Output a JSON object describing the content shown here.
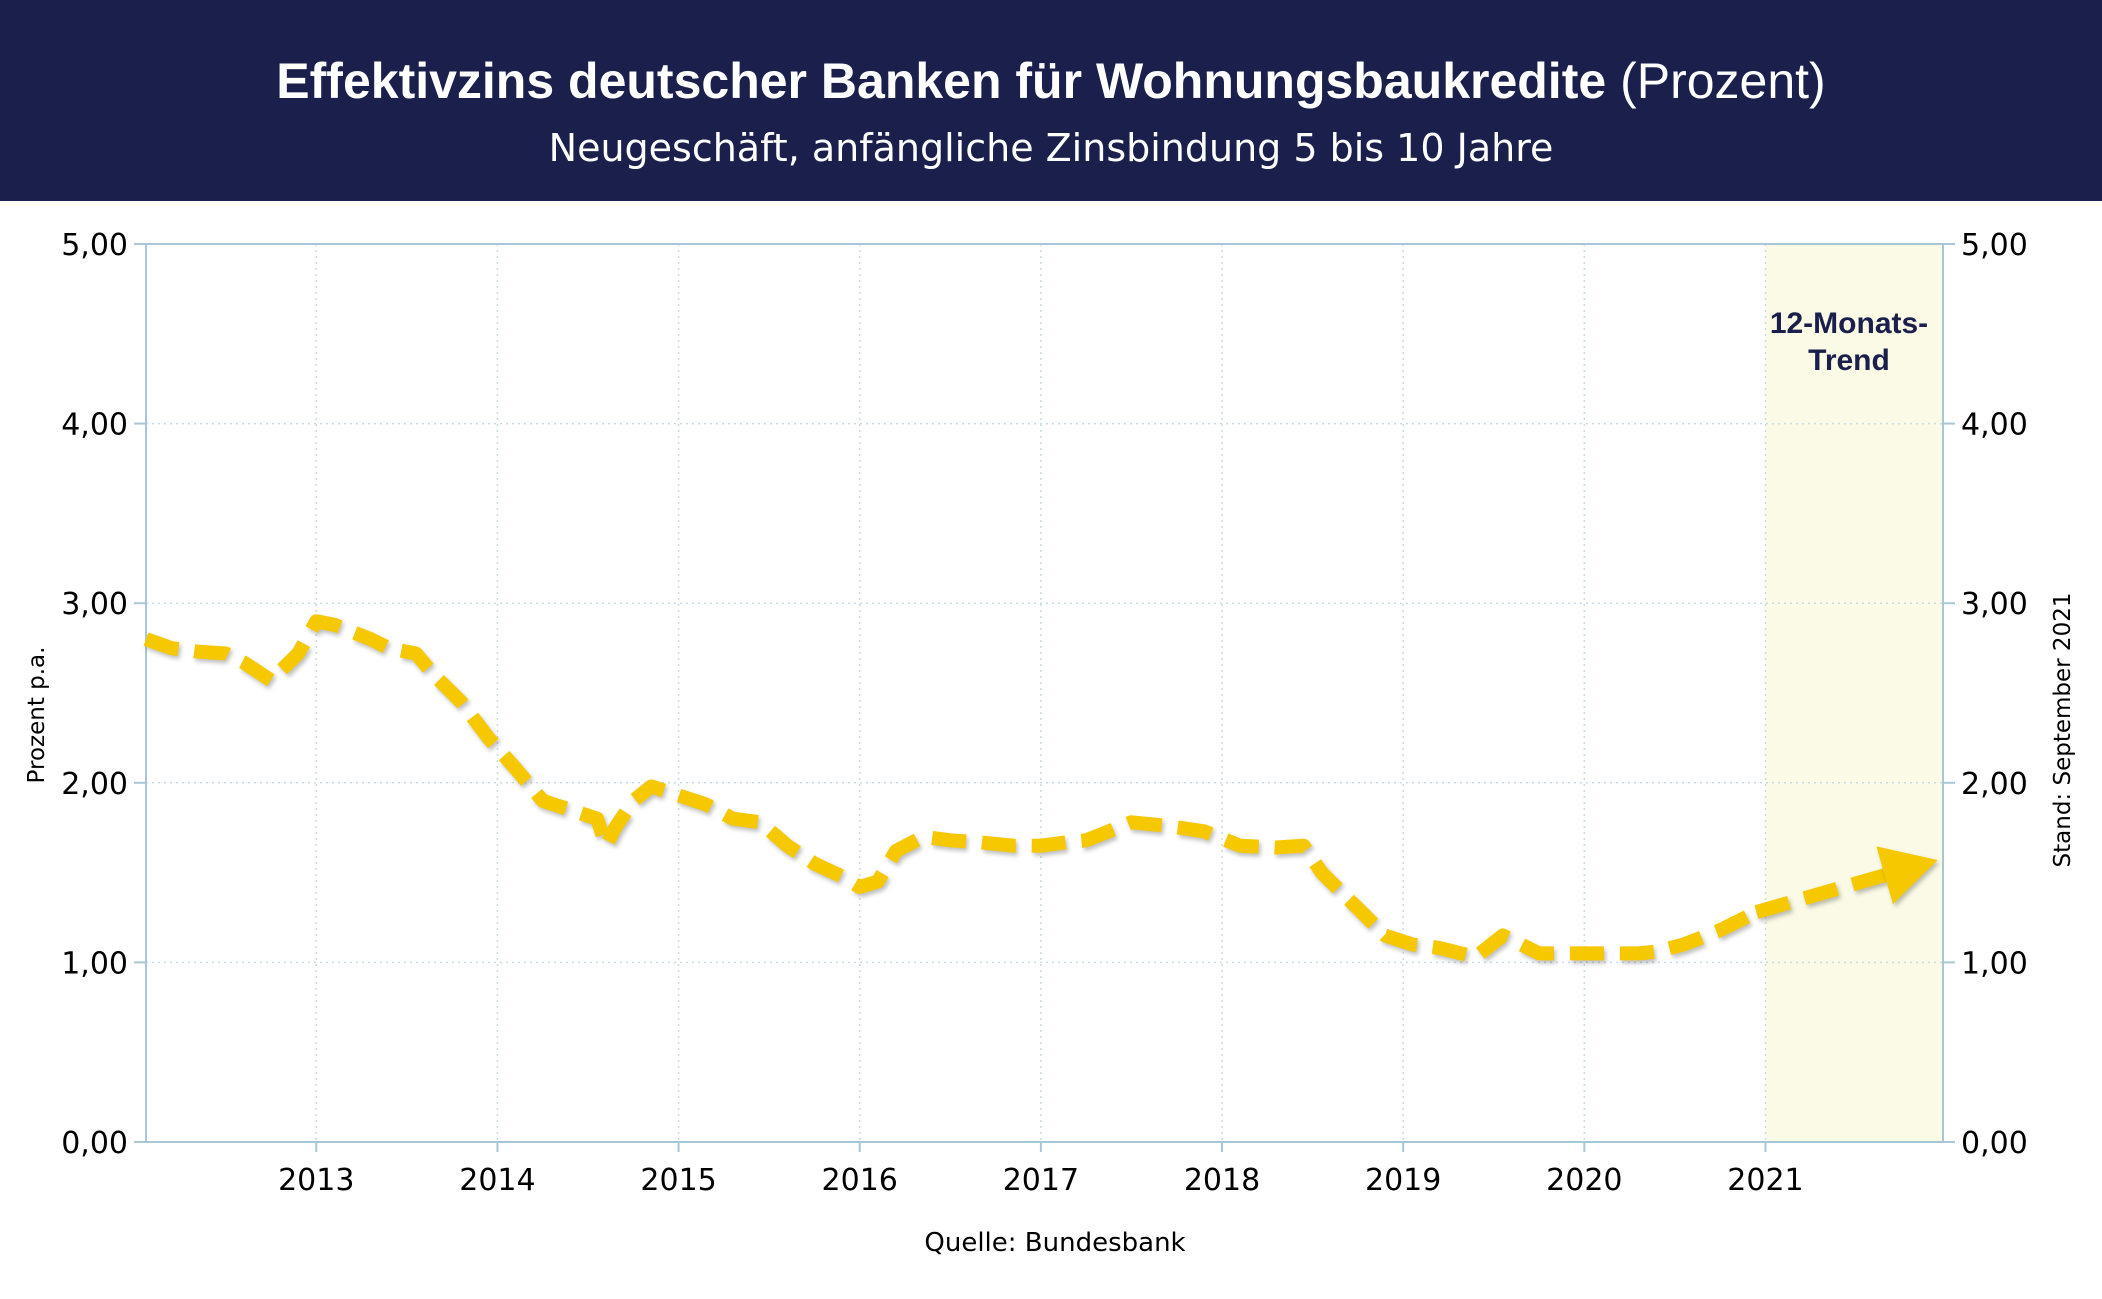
{
  "header": {
    "title": "Effektivzins deutscher Banken für Wohnungsbaukredite",
    "title_unit": "(Prozent)",
    "subtitle": "Neugeschäft, anfängliche Zinsbindung 5 bis 10 Jahre"
  },
  "colors": {
    "header_bg": "#1b1f4b",
    "line": "#f5c800",
    "trend_zone": "#fafae6",
    "grid": "#c8dce8",
    "frame": "#a9c6d6"
  },
  "chart_data": {
    "type": "line",
    "title": "Effektivzins deutscher Banken für Wohnungsbaukredite (Prozent)",
    "subtitle": "Neugeschäft, anfängliche Zinsbindung 5 bis 10 Jahre",
    "ylabel": "Prozent p.a.",
    "right_label": "Stand: September 2021",
    "source": "Quelle: Bundesbank",
    "trend_label": [
      "12-Monats-",
      "Trend"
    ],
    "xlim": [
      2012.06,
      2021.98
    ],
    "ylim": [
      0,
      5
    ],
    "grid": true,
    "x_ticks": [
      "2013",
      "2014",
      "2015",
      "2016",
      "2017",
      "2018",
      "2019",
      "2020",
      "2021"
    ],
    "y_ticks_left": [
      "0,00",
      "1,00",
      "2,00",
      "3,00",
      "4,00",
      "5,00"
    ],
    "y_ticks_right": [
      "0,00",
      "1,00",
      "2,00",
      "3,00",
      "4,00",
      "5,00"
    ],
    "trend_start": 2021.0,
    "series": [
      {
        "name": "",
        "style": "dashed",
        "x": [
          2012.06,
          2012.2,
          2012.35,
          2012.5,
          2012.6,
          2012.75,
          2012.9,
          2013.0,
          2013.1,
          2013.3,
          2013.4,
          2013.55,
          2013.65,
          2013.8,
          2013.95,
          2014.1,
          2014.25,
          2014.4,
          2014.55,
          2014.6,
          2014.65,
          2014.75,
          2014.85,
          2015.0,
          2015.15,
          2015.3,
          2015.45,
          2015.6,
          2015.75,
          2015.9,
          2016.0,
          2016.1,
          2016.2,
          2016.35,
          2016.5,
          2016.65,
          2016.85,
          2017.0,
          2017.15,
          2017.25,
          2017.35,
          2017.5,
          2017.7,
          2017.9,
          2018.1,
          2018.3,
          2018.45,
          2018.55,
          2018.6,
          2018.75,
          2018.9,
          2019.05,
          2019.2,
          2019.4,
          2019.55,
          2019.65,
          2019.75,
          2019.9,
          2020.1,
          2020.3,
          2020.4,
          2020.55,
          2020.75,
          2020.95
        ],
        "y": [
          2.8,
          2.75,
          2.73,
          2.72,
          2.67,
          2.57,
          2.72,
          2.9,
          2.88,
          2.8,
          2.75,
          2.72,
          2.6,
          2.45,
          2.25,
          2.08,
          1.9,
          1.85,
          1.8,
          1.65,
          1.75,
          1.9,
          1.98,
          1.93,
          1.88,
          1.8,
          1.78,
          1.65,
          1.55,
          1.48,
          1.42,
          1.45,
          1.62,
          1.7,
          1.68,
          1.67,
          1.65,
          1.65,
          1.67,
          1.68,
          1.72,
          1.78,
          1.76,
          1.73,
          1.65,
          1.64,
          1.65,
          1.5,
          1.45,
          1.3,
          1.15,
          1.1,
          1.08,
          1.03,
          1.15,
          1.1,
          1.05,
          1.05,
          1.05,
          1.05,
          1.06,
          1.1,
          1.18,
          1.28
        ]
      },
      {
        "name": "12-Monats-Trend",
        "style": "dashed-arrow",
        "x": [
          2020.95,
          2021.95
        ],
        "y": [
          1.28,
          1.57
        ]
      }
    ]
  }
}
